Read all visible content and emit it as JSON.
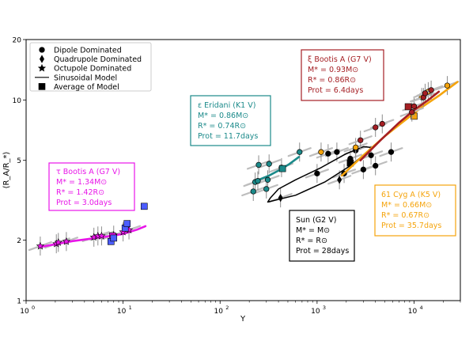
{
  "chart_data": {
    "type": "scatter",
    "xscale": "log",
    "yscale": "log",
    "xlim": [
      1,
      30000
    ],
    "ylim": [
      1,
      20
    ],
    "xlabel": "Y",
    "ylabel": "⟨R_A/R_*⟩",
    "x_ticks": [
      {
        "value": 1,
        "label": "10",
        "sup": "0"
      },
      {
        "value": 10,
        "label": "10",
        "sup": "1"
      },
      {
        "value": 100,
        "label": "10",
        "sup": "2"
      },
      {
        "value": 1000,
        "label": "10",
        "sup": "3"
      },
      {
        "value": 10000,
        "label": "10",
        "sup": "4"
      }
    ],
    "y_ticks": [
      {
        "value": 1,
        "label": "1"
      },
      {
        "value": 2,
        "label": "2"
      },
      {
        "value": 5,
        "label": "5"
      },
      {
        "value": 10,
        "label": "10"
      },
      {
        "value": 20,
        "label": "20"
      }
    ],
    "legend": {
      "position": "top-left",
      "entries": [
        {
          "marker": "circle",
          "label": "Dipole Dominated"
        },
        {
          "marker": "diamond",
          "label": "Quadrupole Dominated"
        },
        {
          "marker": "star",
          "label": "Octupole Dominated"
        },
        {
          "marker": "line",
          "label": "Sinusoidal Model"
        },
        {
          "marker": "square",
          "label": "Average of Model"
        }
      ]
    },
    "stars": [
      {
        "id": "tau-boo",
        "color": "#e815e8",
        "label_lines": [
          "τ Bootis A (G7 V)",
          "M* = 1.34M⊙",
          "R* = 1.42R⊙",
          "Prot = 3.0days"
        ],
        "model": {
          "x": [
            1.4,
            3,
            6,
            10,
            14,
            17
          ],
          "y": [
            1.85,
            1.98,
            2.07,
            2.15,
            2.26,
            2.35
          ]
        },
        "points": [
          {
            "x": 1.4,
            "y": 1.87,
            "m": "star"
          },
          {
            "x": 2.05,
            "y": 1.92,
            "m": "star"
          },
          {
            "x": 2.15,
            "y": 1.95,
            "m": "star"
          },
          {
            "x": 2.6,
            "y": 1.97,
            "m": "star"
          },
          {
            "x": 5.0,
            "y": 2.07,
            "m": "star"
          },
          {
            "x": 5.5,
            "y": 2.1,
            "m": "star"
          },
          {
            "x": 6.0,
            "y": 2.1,
            "m": "star"
          },
          {
            "x": 8.0,
            "y": 2.12,
            "m": "star"
          },
          {
            "x": 10.0,
            "y": 2.2,
            "m": "star"
          },
          {
            "x": 11.5,
            "y": 2.25,
            "m": "star"
          }
        ],
        "averages": [
          {
            "x": 7.8,
            "y": 2.1,
            "c": "#e815e8"
          },
          {
            "x": 7.5,
            "y": 1.97,
            "c": "#4b5cff"
          },
          {
            "x": 8.0,
            "y": 2.05,
            "c": "#4b5cff"
          },
          {
            "x": 10.5,
            "y": 2.3,
            "c": "#4b5cff"
          },
          {
            "x": 11.0,
            "y": 2.42,
            "c": "#4b5cff"
          },
          {
            "x": 16.5,
            "y": 2.95,
            "c": "#4b5cff"
          }
        ]
      },
      {
        "id": "eps-eri",
        "color": "#1b8a8a",
        "label_lines": [
          "ε Eridani (K1 V)",
          "M* = 0.86M⊙",
          "R* = 0.74R⊙",
          "Prot = 11.7days"
        ],
        "model": {
          "x": [
            220,
            320,
            420,
            520,
            650
          ],
          "y": [
            3.9,
            4.2,
            4.5,
            4.8,
            5.2
          ]
        },
        "points": [
          {
            "x": 220,
            "y": 3.5,
            "m": "circle"
          },
          {
            "x": 230,
            "y": 3.9,
            "m": "circle"
          },
          {
            "x": 245,
            "y": 3.95,
            "m": "circle"
          },
          {
            "x": 250,
            "y": 4.75,
            "m": "circle"
          },
          {
            "x": 300,
            "y": 3.6,
            "m": "circle"
          },
          {
            "x": 310,
            "y": 4.0,
            "m": "circle"
          },
          {
            "x": 320,
            "y": 4.8,
            "m": "circle"
          },
          {
            "x": 430,
            "y": 4.6,
            "m": "circle"
          },
          {
            "x": 660,
            "y": 5.5,
            "m": "circle"
          }
        ],
        "averages": [
          {
            "x": 440,
            "y": 4.55,
            "c": "#1b8a8a"
          }
        ]
      },
      {
        "id": "sun",
        "color": "#000000",
        "label_lines": [
          "Sun (G2 V)",
          "M* = M⊙",
          "R* = R⊙",
          "Prot = 28days"
        ],
        "loop": {
          "x": [
            310,
            600,
            1200,
            2200,
            3300,
            3600,
            3000,
            2000,
            1100,
            600,
            400,
            330,
            310
          ],
          "y": [
            3.1,
            3.35,
            3.9,
            4.7,
            5.5,
            5.8,
            5.85,
            5.4,
            4.6,
            4.0,
            3.6,
            3.25,
            3.1
          ]
        },
        "points": [
          {
            "x": 1000,
            "y": 4.3,
            "m": "circle"
          },
          {
            "x": 1300,
            "y": 5.4,
            "m": "circle"
          },
          {
            "x": 1600,
            "y": 5.5,
            "m": "circle"
          },
          {
            "x": 1900,
            "y": 4.3,
            "m": "circle"
          },
          {
            "x": 2200,
            "y": 5.1,
            "m": "circle"
          },
          {
            "x": 2500,
            "y": 5.6,
            "m": "circle"
          },
          {
            "x": 3000,
            "y": 4.5,
            "m": "circle"
          },
          {
            "x": 3600,
            "y": 5.3,
            "m": "circle"
          },
          {
            "x": 4000,
            "y": 4.7,
            "m": "circle"
          },
          {
            "x": 5800,
            "y": 5.5,
            "m": "circle"
          },
          {
            "x": 1700,
            "y": 4.0,
            "m": "diamond"
          },
          {
            "x": 420,
            "y": 3.25,
            "m": "diamond"
          }
        ],
        "averages": [
          {
            "x": 2200,
            "y": 4.85,
            "c": "#000000"
          }
        ]
      },
      {
        "id": "61-cyg",
        "color": "#f5a40c",
        "label_lines": [
          "61 Cyg A (K5 V)",
          "M* = 0.66M⊙",
          "R* = 0.67R⊙",
          "Prot = 35.7days"
        ],
        "model": {
          "x": [
            1800,
            3000,
            5000,
            8000,
            12000,
            18000,
            28000
          ],
          "y": [
            4.2,
            5.3,
            6.6,
            7.9,
            9.2,
            10.5,
            12.3
          ]
        },
        "points": [
          {
            "x": 1100,
            "y": 5.5,
            "m": "circle"
          },
          {
            "x": 2500,
            "y": 5.8,
            "m": "circle"
          },
          {
            "x": 12000,
            "y": 10.3,
            "m": "circle"
          },
          {
            "x": 14000,
            "y": 11.0,
            "m": "circle"
          },
          {
            "x": 22000,
            "y": 11.8,
            "m": "circle"
          }
        ],
        "averages": [
          {
            "x": 10000,
            "y": 8.3,
            "c": "#f5a40c"
          }
        ]
      },
      {
        "id": "xi-boo",
        "color": "#a51f24",
        "label_lines": [
          "ξ Bootis A (G7 V)",
          "M* = 0.93M⊙",
          "R* = 0.86R⊙",
          "Prot = 6.4days"
        ],
        "model": {
          "x": [
            2800,
            4500,
            7000,
            10000,
            14000,
            18000
          ],
          "y": [
            5.0,
            6.3,
            7.7,
            8.9,
            10.0,
            11.0
          ]
        },
        "points": [
          {
            "x": 2800,
            "y": 6.3,
            "m": "circle"
          },
          {
            "x": 4000,
            "y": 7.3,
            "m": "circle"
          },
          {
            "x": 4700,
            "y": 7.6,
            "m": "circle"
          },
          {
            "x": 9500,
            "y": 8.7,
            "m": "circle"
          },
          {
            "x": 10000,
            "y": 9.3,
            "m": "circle"
          },
          {
            "x": 12500,
            "y": 10.3,
            "m": "circle"
          },
          {
            "x": 13000,
            "y": 10.8,
            "m": "circle"
          },
          {
            "x": 15000,
            "y": 11.2,
            "m": "circle"
          }
        ],
        "averages": [
          {
            "x": 8700,
            "y": 9.25,
            "c": "#a51f24"
          }
        ]
      }
    ]
  }
}
